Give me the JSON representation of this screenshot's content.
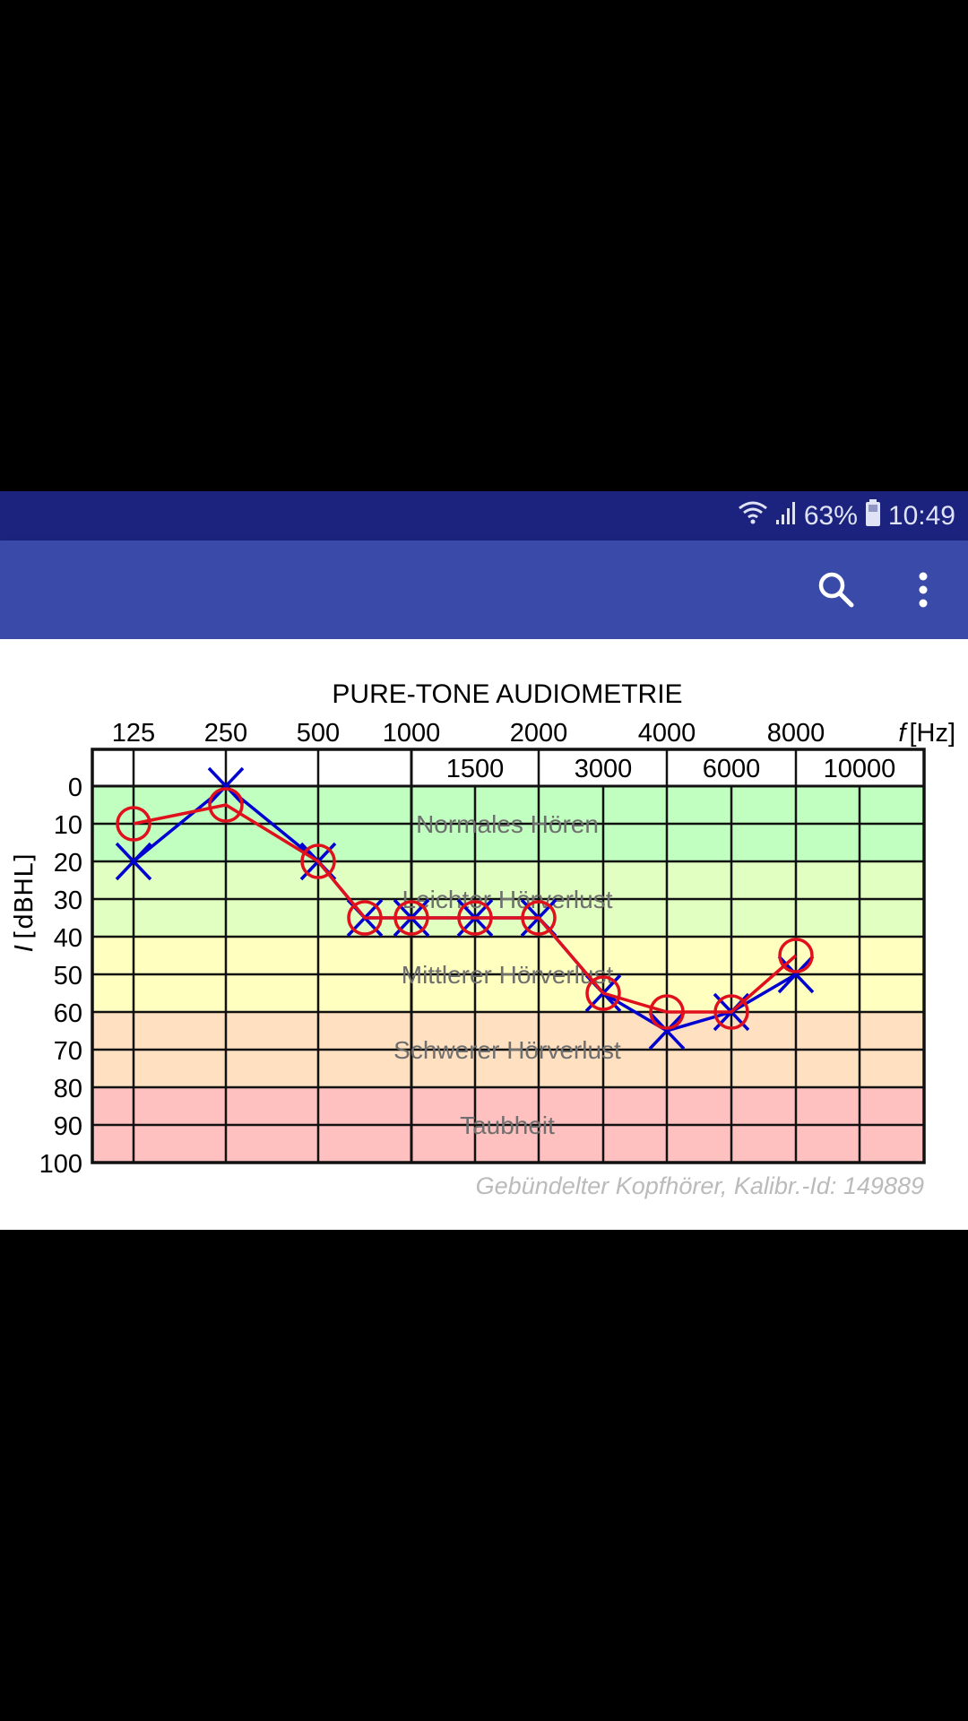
{
  "status_bar": {
    "battery": "63%",
    "time": "10:49",
    "icons": [
      "wifi-icon",
      "signal-icon",
      "battery-icon"
    ]
  },
  "app_bar": {
    "icons": [
      "search-icon",
      "more-vert-icon"
    ]
  },
  "chart_data": {
    "type": "line",
    "title": "PURE-TONE AUDIOMETRIE",
    "xlabel_italic": "f",
    "xlabel_unit": "[Hz]",
    "ylabel_italic": "I",
    "ylabel_unit": "[dBHL]",
    "x_top_labels": [
      "125",
      "250",
      "500",
      "1000",
      "2000",
      "4000",
      "8000"
    ],
    "x_header_labels": [
      "1500",
      "3000",
      "6000",
      "10000"
    ],
    "x": [
      125,
      250,
      500,
      750,
      1000,
      1500,
      2000,
      3000,
      4000,
      6000,
      8000
    ],
    "y_ticks": [
      "0",
      "10",
      "20",
      "30",
      "40",
      "50",
      "60",
      "70",
      "80",
      "90",
      "100"
    ],
    "ylim": [
      0,
      100
    ],
    "y_inverted": true,
    "grid": true,
    "bands": [
      {
        "label": "Normales Hören",
        "from": 0,
        "to": 20,
        "color": "#c0ffc0"
      },
      {
        "label": "Leichter Hörverlust",
        "from": 20,
        "to": 40,
        "color": "#e0ffc0"
      },
      {
        "label": "Mittlerer Hörverlust",
        "from": 40,
        "to": 60,
        "color": "#ffffc0"
      },
      {
        "label": "Schwerer Hörverlust",
        "from": 60,
        "to": 80,
        "color": "#ffe0c0"
      },
      {
        "label": "Taubheit",
        "from": 80,
        "to": 100,
        "color": "#ffc0c0"
      }
    ],
    "series": [
      {
        "marker": "x",
        "color": "#0000d0",
        "values": [
          20,
          0,
          20,
          35,
          35,
          35,
          35,
          55,
          65,
          60,
          50
        ]
      },
      {
        "marker": "o",
        "color": "#e0101c",
        "values": [
          10,
          5,
          20,
          35,
          35,
          35,
          35,
          55,
          60,
          60,
          45
        ]
      }
    ],
    "footnote": "Gebündelter Kopfhörer, Kalibr.-Id: 149889"
  }
}
